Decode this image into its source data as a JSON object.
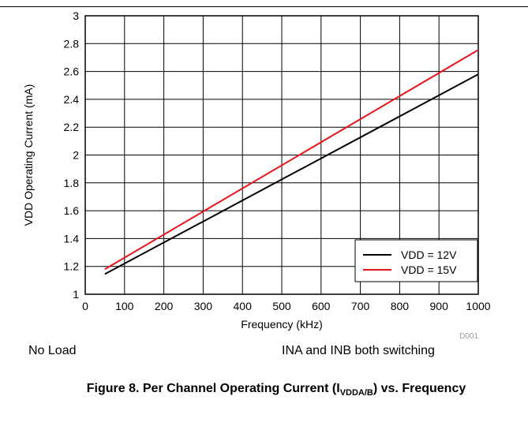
{
  "chart_data": {
    "type": "line",
    "xlabel": "Frequency (kHz)",
    "ylabel": "VDD Operating Current (mA)",
    "xlim": [
      0,
      1000
    ],
    "ylim": [
      1,
      3
    ],
    "xticks": [
      0,
      100,
      200,
      300,
      400,
      500,
      600,
      700,
      800,
      900,
      1000
    ],
    "yticks": [
      1,
      1.2,
      1.4,
      1.6,
      1.8,
      2,
      2.2,
      2.4,
      2.6,
      2.8,
      3
    ],
    "grid": true,
    "legend_position": "bottom-right",
    "figure_id": "D001",
    "series": [
      {
        "name": "VDD = 12V",
        "color": "#000000",
        "x": [
          50,
          1000
        ],
        "y": [
          1.145,
          2.58
        ]
      },
      {
        "name": "VDD = 15V",
        "color": "#e8141c",
        "x": [
          50,
          1000
        ],
        "y": [
          1.18,
          2.755
        ]
      }
    ]
  },
  "conditions": {
    "left": "No Load",
    "right": "INA and INB both switching"
  },
  "caption": {
    "prefix": "Figure 8. Per Channel Operating Current (I",
    "subscript": "VDDA/B",
    "suffix": ") vs. Frequency"
  }
}
